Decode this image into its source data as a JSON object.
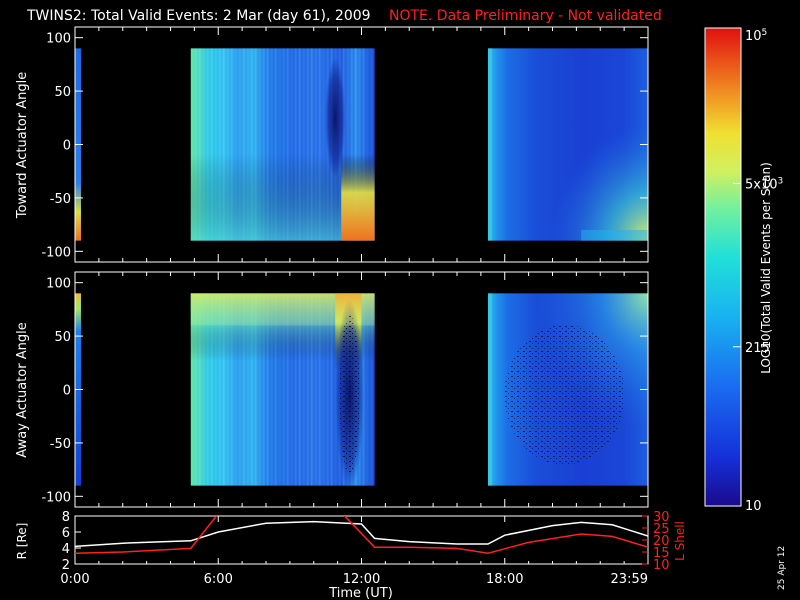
{
  "title": {
    "main": "TWINS2: Total Valid Events:  2 Mar (day  61), 2009",
    "note": "NOTE. Data Preliminary - Not validated"
  },
  "colorbar": {
    "label": "LOG10(Total Valid Events per Scan)",
    "tick_labels": [
      "10",
      "215",
      "5x10^3",
      "10^5"
    ],
    "tick_values": [
      10,
      215,
      5000,
      100000
    ],
    "range": [
      10,
      100000
    ],
    "scale": "log"
  },
  "panels": {
    "toward": {
      "ylabel": "Toward Actuator Angle"
    },
    "away": {
      "ylabel": "Away Actuator Angle"
    },
    "orbit": {
      "left_label": "R [Re]",
      "right_label": "L Shell",
      "xlabel": "Time (UT)",
      "x_tick_labels": [
        "0:00",
        "6:00",
        "12:00",
        "18:00",
        "23:59"
      ]
    }
  },
  "footer_date": "25 Apr 12",
  "colors": {
    "background": "#000000",
    "axis": "#ffffff",
    "note": "#ff2020",
    "r_line": "#ffffff",
    "l_shell_line": "#ff2020"
  },
  "chart_data": [
    {
      "type": "heatmap",
      "name_panel": "toward",
      "x_unit": "hours UT",
      "y_unit": "degrees",
      "xlim": [
        0,
        24
      ],
      "ylim": [
        -110,
        110
      ],
      "y_ticks": [
        -100,
        -50,
        0,
        50,
        100
      ],
      "data_y_range": [
        -90,
        90
      ],
      "data_intervals": [
        [
          0.0,
          0.25
        ],
        [
          4.85,
          12.55
        ],
        [
          17.3,
          24.0
        ]
      ],
      "color_scale": "log10 counts, blue (low) to red (high)",
      "notes": "high counts near -90 deg at 0:00, ~11:00-12:30 and 23:30"
    },
    {
      "type": "heatmap",
      "name_panel": "away",
      "x_unit": "hours UT",
      "y_unit": "degrees",
      "xlim": [
        0,
        24
      ],
      "ylim": [
        -110,
        110
      ],
      "y_ticks": [
        -100,
        -50,
        0,
        50,
        100
      ],
      "data_y_range": [
        -90,
        90
      ],
      "data_intervals": [
        [
          0.0,
          0.25
        ],
        [
          4.85,
          12.55
        ],
        [
          17.3,
          24.0
        ]
      ],
      "color_scale": "log10 counts, blue (low) to red (high)",
      "notes": "elevated counts near +90 deg ~11:00-12:00"
    },
    {
      "type": "line",
      "name_panel": "orbit",
      "xlim": [
        0,
        24
      ],
      "ylim_left": [
        2,
        8
      ],
      "ylim_right": [
        10,
        30
      ],
      "y_ticks_left": [
        2,
        4,
        6,
        8
      ],
      "y_ticks_right": [
        10,
        15,
        20,
        25,
        30
      ],
      "series": [
        {
          "name": "R [Re]",
          "axis": "left",
          "x": [
            0,
            2,
            4.85,
            6,
            8,
            10,
            12,
            12.55,
            14,
            16,
            17.3,
            18,
            20,
            21.2,
            22.5,
            24
          ],
          "y": [
            4.2,
            4.6,
            4.9,
            6.0,
            7.1,
            7.3,
            7.0,
            5.2,
            4.8,
            4.5,
            4.5,
            5.6,
            6.8,
            7.2,
            6.9,
            5.5
          ]
        },
        {
          "name": "L Shell",
          "axis": "right",
          "x": [
            0,
            2,
            4.85,
            6,
            11.2,
            12.55,
            14,
            16,
            17.3,
            19,
            21.2,
            22.5,
            24
          ],
          "y": [
            14.5,
            15,
            16.5,
            31,
            31,
            17,
            17,
            16.5,
            14.5,
            19,
            22.5,
            21.5,
            17
          ]
        }
      ]
    }
  ]
}
